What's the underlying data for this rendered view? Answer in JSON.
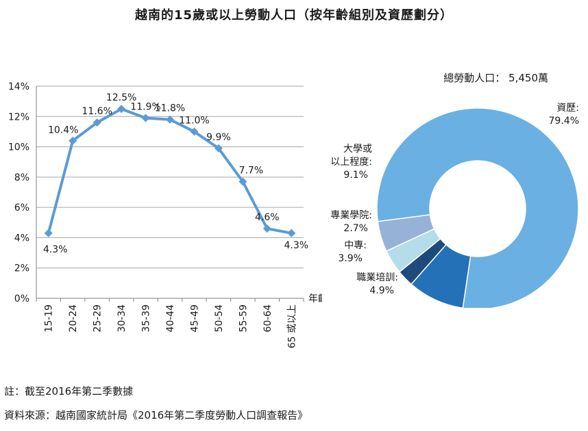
{
  "title": "越南的15歲或以上勞動人口（按年齡組別及資歷劃分）",
  "chart_data": [
    {
      "type": "line",
      "categories": [
        "15-19",
        "20-24",
        "25-29",
        "30-34",
        "35-39",
        "40-44",
        "45-49",
        "50-54",
        "55-59",
        "60-64",
        "65 或以上"
      ],
      "values": [
        4.3,
        10.4,
        11.6,
        12.5,
        11.9,
        11.8,
        11.0,
        9.9,
        7.7,
        4.6,
        4.3
      ],
      "value_labels": [
        "4.3%",
        "10.4%",
        "11.6%",
        "12.5%",
        "11.9%",
        "11.8%",
        "11.0%",
        "9.9%",
        "7.7%",
        "4.6%",
        "4.3%"
      ],
      "y_ticks": [
        0,
        2,
        4,
        6,
        8,
        10,
        12,
        14
      ],
      "y_tick_labels": [
        "0%",
        "2%",
        "4%",
        "6%",
        "8%",
        "10%",
        "12%",
        "14%"
      ],
      "ylim": [
        0,
        14
      ],
      "xlabel": "年齡",
      "ylabel": "",
      "grid": true,
      "color": "#5B9BD5"
    },
    {
      "type": "pie",
      "subtitle": "總勞動人口： 5,450萬",
      "labels": [
        "資歷:",
        "大學或以上程度:",
        "專業學院:",
        "中專:",
        "職業培訓:"
      ],
      "display_labels": [
        [
          "資歷:",
          "79.4%"
        ],
        [
          "大學或",
          "以上程度:",
          "9.1%"
        ],
        [
          "專業學院:",
          "2.7%"
        ],
        [
          "中專:",
          "3.9%"
        ],
        [
          "職業培訓:",
          "4.9%"
        ]
      ],
      "values": [
        79.4,
        9.1,
        2.7,
        3.9,
        4.9
      ],
      "colors": [
        "#6AB0E2",
        "#2471B8",
        "#1E4A7C",
        "#B5DDE9",
        "#96B3D7"
      ],
      "donut": true
    }
  ],
  "notes": {
    "note": "註：截至2016年第二季數據",
    "source": "資料來源：越南國家統計局《2016年第二季度勞動人口調查報告》"
  }
}
